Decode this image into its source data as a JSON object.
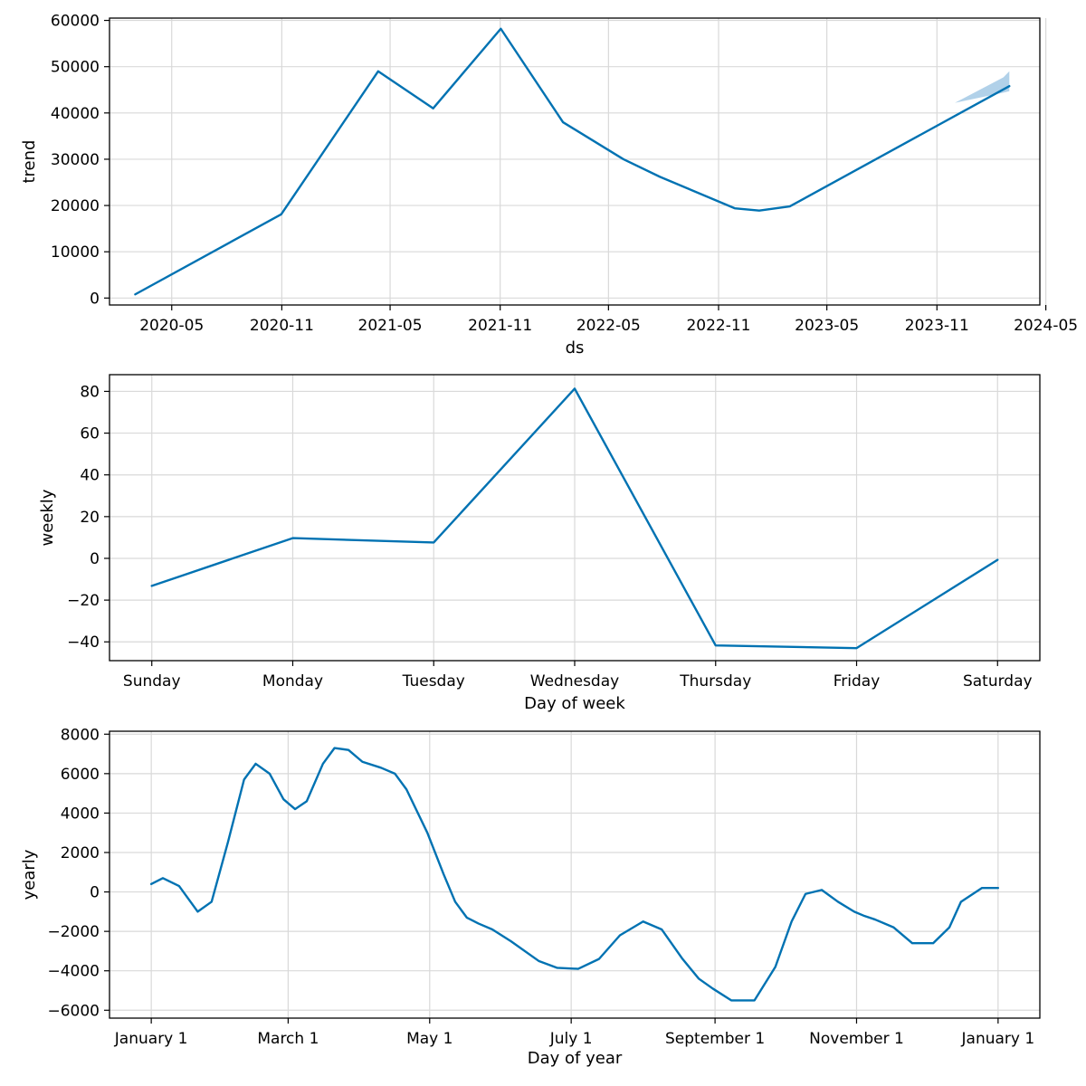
{
  "colors": {
    "line": "#0072b2",
    "band": "#9ec6e4",
    "grid": "#d9d9d9"
  },
  "chart_data": [
    {
      "id": "trend",
      "type": "line",
      "xaxis_type": "date",
      "xlabel": "ds",
      "ylabel": "trend",
      "grid": true,
      "xlim": [
        "2020-01-18",
        "2024-04-21"
      ],
      "ylim": [
        -1500,
        60500
      ],
      "xticks": [
        {
          "value": "2020-05-01",
          "label": "2020-05"
        },
        {
          "value": "2020-11-01",
          "label": "2020-11"
        },
        {
          "value": "2021-05-01",
          "label": "2021-05"
        },
        {
          "value": "2021-11-01",
          "label": "2021-11"
        },
        {
          "value": "2022-05-01",
          "label": "2022-05"
        },
        {
          "value": "2022-11-01",
          "label": "2022-11"
        },
        {
          "value": "2023-05-01",
          "label": "2023-05"
        },
        {
          "value": "2023-11-01",
          "label": "2023-11"
        },
        {
          "value": "2024-05-01",
          "label": "2024-05"
        }
      ],
      "yticks": [
        {
          "value": 0,
          "label": "0"
        },
        {
          "value": 10000,
          "label": "10000"
        },
        {
          "value": 20000,
          "label": "20000"
        },
        {
          "value": 30000,
          "label": "30000"
        },
        {
          "value": 40000,
          "label": "40000"
        },
        {
          "value": 50000,
          "label": "50000"
        },
        {
          "value": 60000,
          "label": "60000"
        }
      ],
      "series": [
        {
          "x": [
            "2020-03-01",
            "2020-10-31",
            "2021-04-11",
            "2021-07-12",
            "2021-11-02",
            "2022-02-14",
            "2022-05-26",
            "2022-07-26",
            "2022-11-28",
            "2023-01-08",
            "2023-02-28",
            "2024-03-01"
          ],
          "y": [
            800,
            18100,
            49000,
            41000,
            58200,
            38000,
            30000,
            26200,
            19400,
            18900,
            19800,
            45800
          ]
        }
      ],
      "uncertainty_band": {
        "x": [
          "2023-12-01",
          "2024-02-20",
          "2024-03-01"
        ],
        "lower": [
          42200,
          44400,
          44700
        ],
        "upper": [
          42200,
          47700,
          49000
        ]
      }
    },
    {
      "id": "weekly",
      "type": "line",
      "xlabel": "Day of week",
      "ylabel": "weekly",
      "grid": true,
      "categories": [
        "Sunday",
        "Monday",
        "Tuesday",
        "Wednesday",
        "Thursday",
        "Friday",
        "Saturday"
      ],
      "xlim": [
        -0.3,
        6.3
      ],
      "ylim": [
        -49,
        88
      ],
      "yticks": [
        {
          "value": -40,
          "label": "−40"
        },
        {
          "value": -20,
          "label": "−20"
        },
        {
          "value": 0,
          "label": "0"
        },
        {
          "value": 20,
          "label": "20"
        },
        {
          "value": 40,
          "label": "40"
        },
        {
          "value": 60,
          "label": "60"
        },
        {
          "value": 80,
          "label": "80"
        }
      ],
      "series": [
        {
          "values": [
            -13.2,
            9.7,
            7.6,
            81.3,
            -41.7,
            -43.0,
            -0.7
          ]
        }
      ]
    },
    {
      "id": "yearly",
      "type": "line",
      "xlabel": "Day of year",
      "ylabel": "yearly",
      "grid": true,
      "xlim": [
        -18,
        383
      ],
      "ylim": [
        -6400,
        8150
      ],
      "xticks": [
        {
          "value": 0,
          "label": "January 1"
        },
        {
          "value": 59,
          "label": "March 1"
        },
        {
          "value": 120,
          "label": "May 1"
        },
        {
          "value": 181,
          "label": "July 1"
        },
        {
          "value": 243,
          "label": "September 1"
        },
        {
          "value": 304,
          "label": "November 1"
        },
        {
          "value": 365,
          "label": "January 1"
        }
      ],
      "yticks": [
        {
          "value": -6000,
          "label": "−6000"
        },
        {
          "value": -4000,
          "label": "−4000"
        },
        {
          "value": -2000,
          "label": "−2000"
        },
        {
          "value": 0,
          "label": "0"
        },
        {
          "value": 2000,
          "label": "2000"
        },
        {
          "value": 4000,
          "label": "4000"
        },
        {
          "value": 6000,
          "label": "6000"
        },
        {
          "value": 8000,
          "label": "8000"
        }
      ],
      "series": [
        {
          "x": [
            0,
            5,
            12,
            20,
            26,
            33,
            40,
            45,
            51,
            57,
            62,
            67,
            74,
            79,
            85,
            91,
            99,
            105,
            110,
            119,
            126,
            131,
            136,
            141,
            147,
            155,
            167,
            175,
            184,
            193,
            202,
            212,
            220,
            229,
            236,
            242,
            250,
            260,
            269,
            276,
            282,
            289,
            296,
            303,
            307,
            312,
            320,
            328,
            337,
            344,
            349,
            358,
            365
          ],
          "y": [
            400,
            700,
            300,
            -1000,
            -500,
            2500,
            5700,
            6500,
            6000,
            4700,
            4200,
            4600,
            6500,
            7300,
            7200,
            6600,
            6300,
            6000,
            5200,
            3000,
            900,
            -500,
            -1300,
            -1600,
            -1900,
            -2500,
            -3500,
            -3850,
            -3900,
            -3400,
            -2200,
            -1500,
            -1900,
            -3400,
            -4400,
            -4900,
            -5500,
            -5500,
            -3800,
            -1500,
            -100,
            100,
            -500,
            -1000,
            -1200,
            -1400,
            -1800,
            -2600,
            -2600,
            -1800,
            -500,
            200,
            200
          ]
        }
      ]
    }
  ]
}
